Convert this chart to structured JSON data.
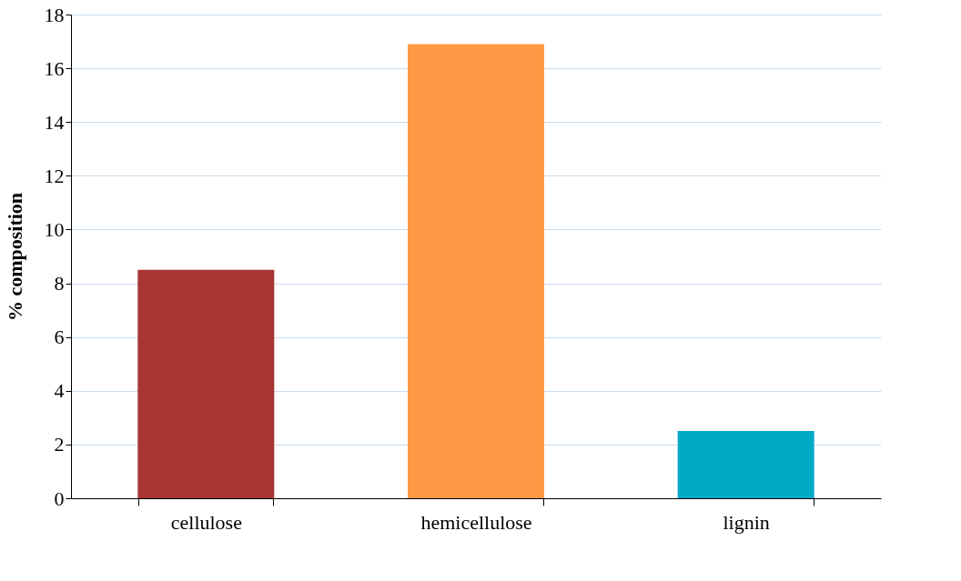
{
  "chart_data": {
    "type": "bar",
    "ylabel": "% composition",
    "categories": [
      "cellulose",
      "hemicellulose",
      "lignin"
    ],
    "values": [
      8.5,
      16.9,
      2.5
    ],
    "colors": [
      "#a93434",
      "#fe9a45",
      "#00aac6"
    ],
    "ylim": [
      0,
      18
    ],
    "yticks": [
      0,
      2,
      4,
      6,
      8,
      10,
      12,
      14,
      16,
      18
    ],
    "grid": "y",
    "legend": false
  }
}
